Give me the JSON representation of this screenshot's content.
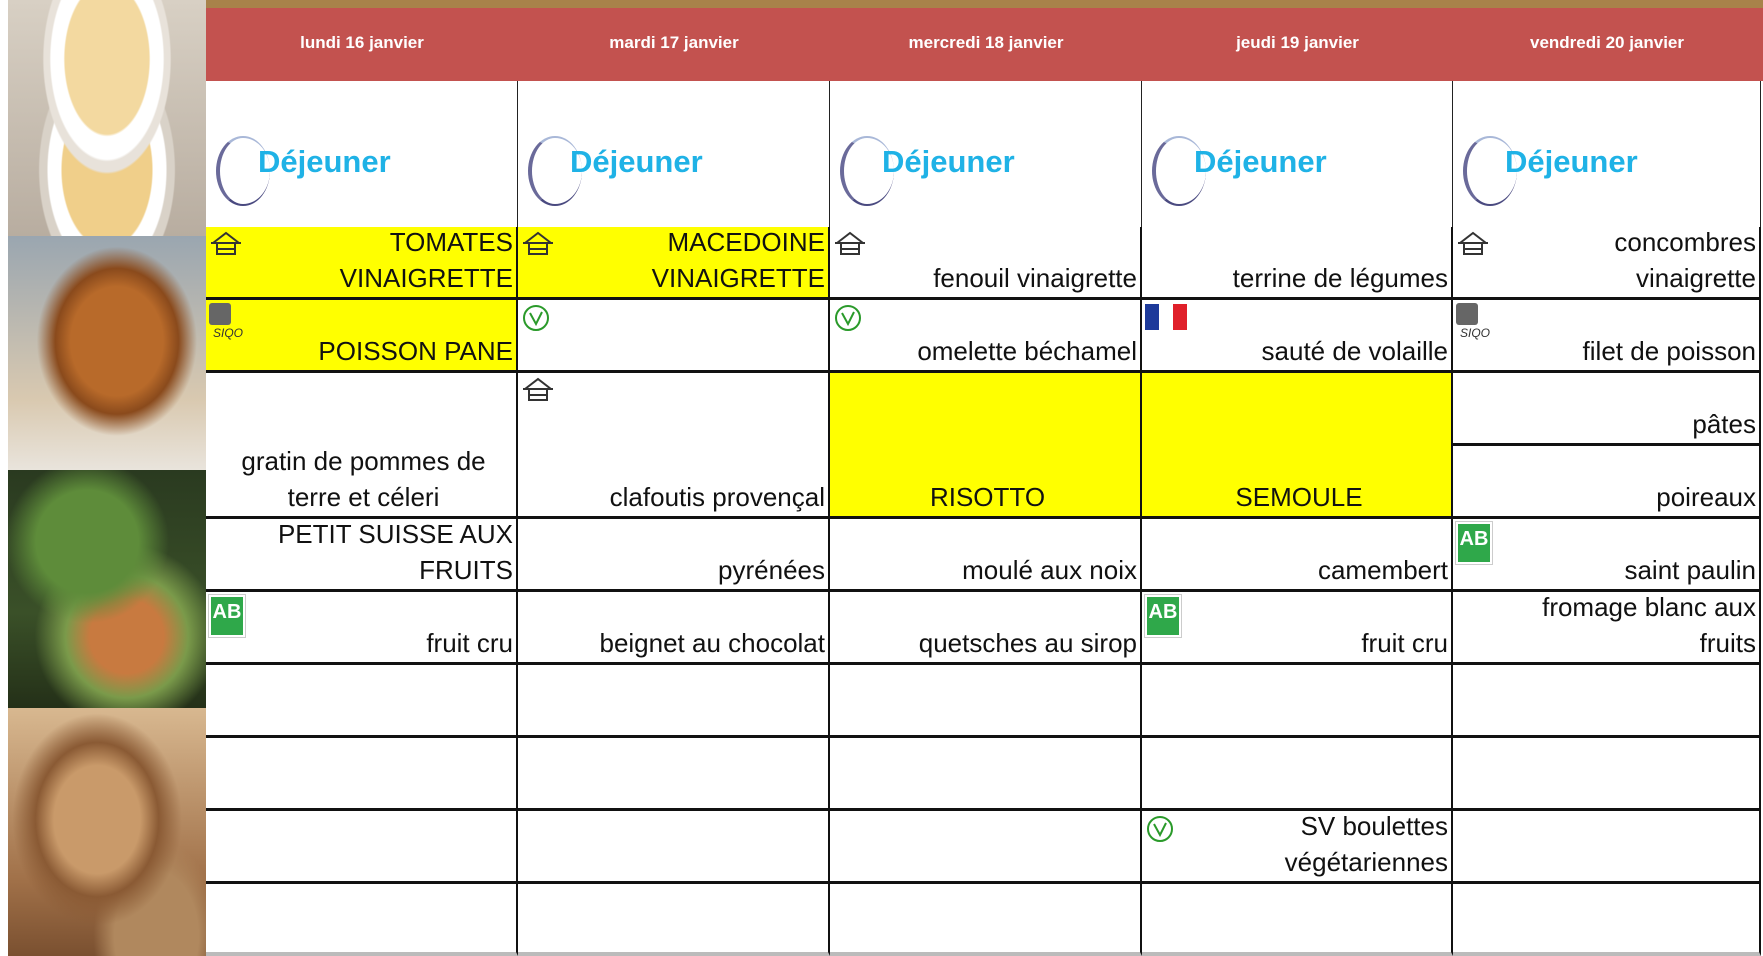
{
  "meal": "Déjeuner",
  "icons": {
    "siqo": "SIQO",
    "ab": "AB"
  },
  "menu": [
    {
      "day": "lundi 16 janvier",
      "items": [
        "TOMATES VINAIGRETTE",
        "POISSON PANE",
        "gratin de pommes de terre et céleri",
        "PETIT SUISSE AUX FRUITS",
        "fruit cru"
      ]
    },
    {
      "day": "mardi 17 janvier",
      "items": [
        "MACEDOINE VINAIGRETTE",
        "clafoutis provençal",
        "pyrénées",
        "beignet au chocolat"
      ]
    },
    {
      "day": "mercredi 18 janvier",
      "items": [
        "fenouil vinaigrette",
        "omelette béchamel",
        "RISOTTO",
        "moulé aux noix",
        "quetsches au sirop"
      ]
    },
    {
      "day": "jeudi 19 janvier",
      "items": [
        "terrine de légumes",
        "sauté de volaille",
        "SEMOULE",
        "camembert",
        "fruit cru",
        "SV boulettes végétariennes"
      ]
    },
    {
      "day": "vendredi 20 janvier",
      "items": [
        "concombres vinaigrette",
        "filet de poisson",
        "pâtes",
        "poireaux",
        "saint paulin",
        "fromage blanc aux fruits"
      ]
    }
  ]
}
